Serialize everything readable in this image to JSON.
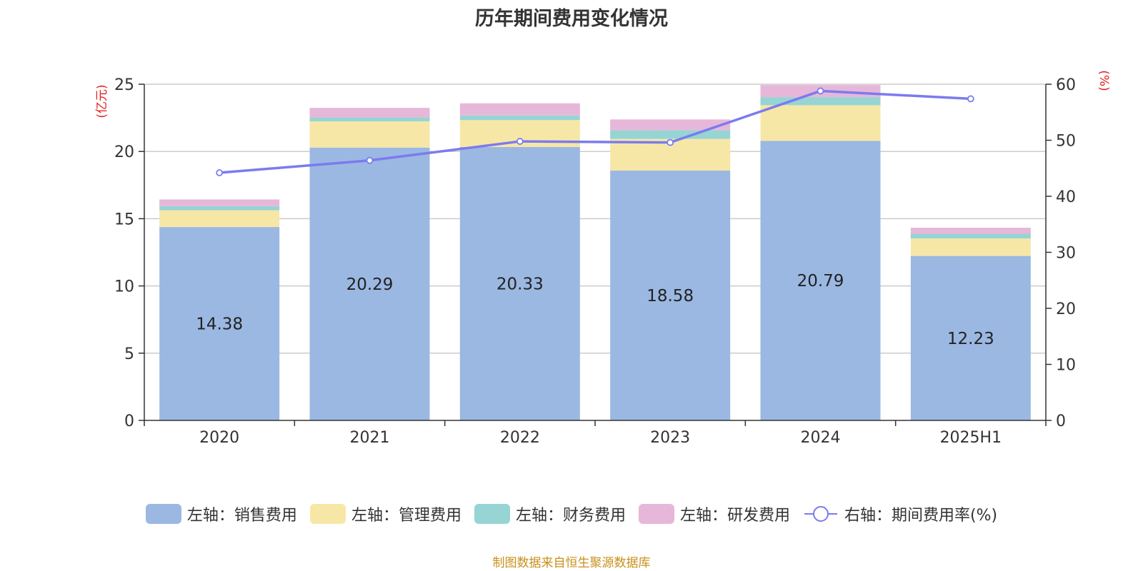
{
  "chart_data": {
    "type": "bar",
    "stacked": true,
    "title": "历年期间费用变化情况",
    "categories": [
      "2020",
      "2021",
      "2022",
      "2023",
      "2024",
      "2025H1"
    ],
    "left_axis": {
      "label": "(亿元)",
      "ylim": [
        0,
        25
      ],
      "ticks": [
        0,
        5,
        10,
        15,
        20,
        25
      ]
    },
    "right_axis": {
      "label": "(%)",
      "ylim": [
        0,
        60
      ],
      "ticks": [
        0,
        10,
        20,
        30,
        40,
        50,
        60
      ]
    },
    "series": [
      {
        "name": "左轴：销售费用",
        "type": "bar",
        "color": "#9bb8e2",
        "values": [
          14.38,
          20.29,
          20.33,
          18.58,
          20.79,
          12.23
        ],
        "show_labels": true
      },
      {
        "name": "左轴：管理费用",
        "type": "bar",
        "color": "#f7e7a6",
        "values": [
          1.25,
          1.95,
          2.0,
          2.35,
          2.65,
          1.3
        ]
      },
      {
        "name": "左轴：财务费用",
        "type": "bar",
        "color": "#97d4d4",
        "values": [
          0.3,
          0.3,
          0.35,
          0.65,
          0.6,
          0.35
        ]
      },
      {
        "name": "左轴：研发费用",
        "type": "bar",
        "color": "#e7b7d9",
        "values": [
          0.5,
          0.7,
          0.9,
          0.8,
          0.9,
          0.45
        ]
      },
      {
        "name": "右轴：期间费用率(%)",
        "type": "line",
        "axis": "right",
        "color": "#7b7bef",
        "values": [
          44.2,
          46.4,
          49.8,
          49.6,
          58.8,
          57.4
        ]
      }
    ],
    "grid": true,
    "legend_position": "bottom"
  },
  "source_note": "制图数据来自恒生聚源数据库"
}
